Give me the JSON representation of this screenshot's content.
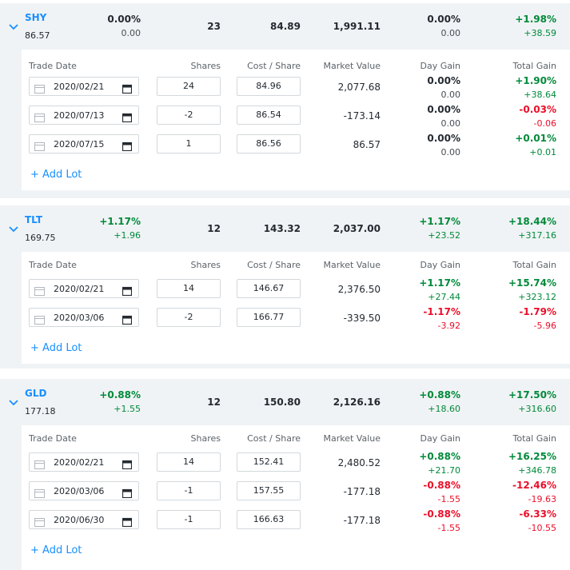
{
  "colors": {
    "accent": "#188fff",
    "positive": "#008a3a",
    "negative": "#eb0f29",
    "panel_bg": "#f0f3f5"
  },
  "icons": {
    "expand": "chevron-down-icon",
    "calendar_left": "calendar-outline-icon",
    "calendar_right": "calendar-icon",
    "add": "plus-icon"
  },
  "lot_headers": {
    "trade_date": "Trade Date",
    "shares": "Shares",
    "cost_share": "Cost / Share",
    "market_value": "Market Value",
    "day_gain": "Day Gain",
    "total_gain": "Total Gain"
  },
  "add_lot_label": "+ Add Lot",
  "holdings": [
    {
      "symbol": "SHY",
      "price": "86.57",
      "change_pct": "0.00%",
      "change": "0.00",
      "shares": "23",
      "cost_share": "84.89",
      "market_value": "1,991.11",
      "day_gain_pct": "0.00%",
      "day_gain": "0.00",
      "total_gain_pct": "+1.98%",
      "total_gain": "+38.59",
      "lots": [
        {
          "date": "2020/02/21",
          "shares": "24",
          "cost": "84.96",
          "market_value": "2,077.68",
          "day_pct": "0.00%",
          "day_val": "0.00",
          "total_pct": "+1.90%",
          "total_val": "+38.64"
        },
        {
          "date": "2020/07/13",
          "shares": "-2",
          "cost": "86.54",
          "market_value": "-173.14",
          "day_pct": "0.00%",
          "day_val": "0.00",
          "total_pct": "-0.03%",
          "total_val": "-0.06"
        },
        {
          "date": "2020/07/15",
          "shares": "1",
          "cost": "86.56",
          "market_value": "86.57",
          "day_pct": "0.00%",
          "day_val": "0.00",
          "total_pct": "+0.01%",
          "total_val": "+0.01"
        }
      ]
    },
    {
      "symbol": "TLT",
      "price": "169.75",
      "change_pct": "+1.17%",
      "change": "+1.96",
      "shares": "12",
      "cost_share": "143.32",
      "market_value": "2,037.00",
      "day_gain_pct": "+1.17%",
      "day_gain": "+23.52",
      "total_gain_pct": "+18.44%",
      "total_gain": "+317.16",
      "lots": [
        {
          "date": "2020/02/21",
          "shares": "14",
          "cost": "146.67",
          "market_value": "2,376.50",
          "day_pct": "+1.17%",
          "day_val": "+27.44",
          "total_pct": "+15.74%",
          "total_val": "+323.12"
        },
        {
          "date": "2020/03/06",
          "shares": "-2",
          "cost": "166.77",
          "market_value": "-339.50",
          "day_pct": "-1.17%",
          "day_val": "-3.92",
          "total_pct": "-1.79%",
          "total_val": "-5.96"
        }
      ]
    },
    {
      "symbol": "GLD",
      "price": "177.18",
      "change_pct": "+0.88%",
      "change": "+1.55",
      "shares": "12",
      "cost_share": "150.80",
      "market_value": "2,126.16",
      "day_gain_pct": "+0.88%",
      "day_gain": "+18.60",
      "total_gain_pct": "+17.50%",
      "total_gain": "+316.60",
      "lots": [
        {
          "date": "2020/02/21",
          "shares": "14",
          "cost": "152.41",
          "market_value": "2,480.52",
          "day_pct": "+0.88%",
          "day_val": "+21.70",
          "total_pct": "+16.25%",
          "total_val": "+346.78"
        },
        {
          "date": "2020/03/06",
          "shares": "-1",
          "cost": "157.55",
          "market_value": "-177.18",
          "day_pct": "-0.88%",
          "day_val": "-1.55",
          "total_pct": "-12.46%",
          "total_val": "-19.63"
        },
        {
          "date": "2020/06/30",
          "shares": "-1",
          "cost": "166.63",
          "market_value": "-177.18",
          "day_pct": "-0.88%",
          "day_val": "-1.55",
          "total_pct": "-6.33%",
          "total_val": "-10.55"
        }
      ]
    }
  ]
}
